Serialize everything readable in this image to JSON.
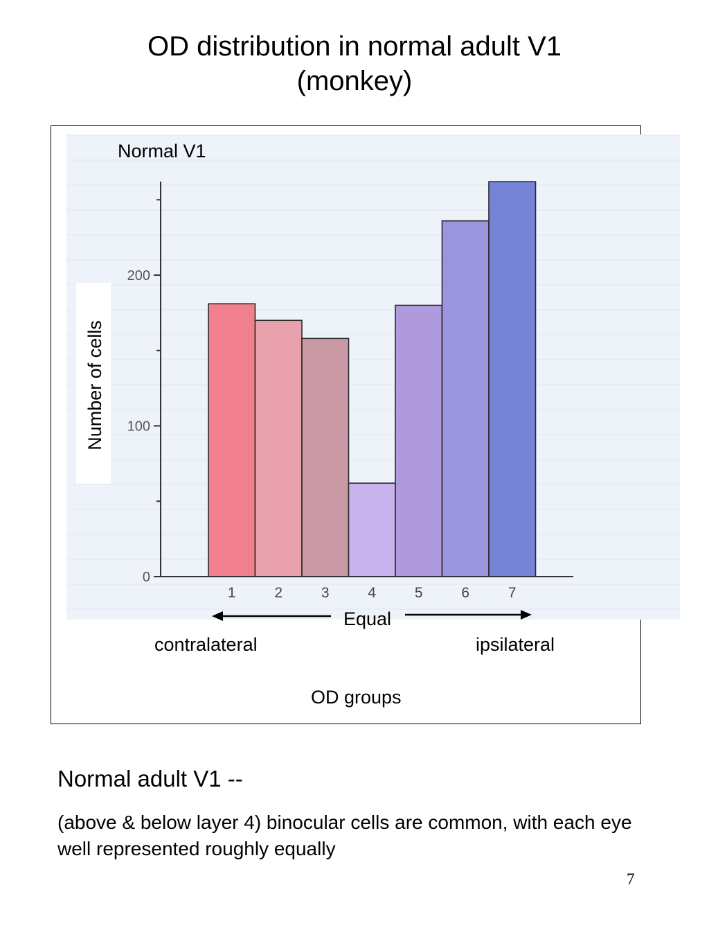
{
  "title": {
    "line1": "OD distribution in normal adult V1",
    "line2": "(monkey)"
  },
  "figure": {
    "panel_label": "Normal V1",
    "equal_label": "Equal",
    "left_label": "contralateral",
    "right_label": "ipsilateral",
    "group_axis_label": "OD groups"
  },
  "chart_data": {
    "type": "bar",
    "title": "Normal V1",
    "xlabel": "OD groups",
    "ylabel": "Number of cells",
    "categories": [
      "1",
      "2",
      "3",
      "4",
      "5",
      "6",
      "7"
    ],
    "values": [
      181,
      170,
      158,
      62,
      180,
      236,
      262
    ],
    "ylim": [
      0,
      265
    ],
    "yticks": [
      0,
      100,
      200
    ],
    "minor_yticks": [
      50,
      150,
      250
    ],
    "bar_colors": [
      "#f0808e",
      "#e9a2ad",
      "#c99aa6",
      "#c8b3ec",
      "#b09ade",
      "#9b95de",
      "#7584d6"
    ],
    "grid": false,
    "legend": "none",
    "annotations": [
      "Equal",
      "contralateral",
      "ipsilateral"
    ]
  },
  "body": {
    "heading": "Normal adult V1 --",
    "text": "(above & below layer 4) binocular cells are common, with each eye well represented roughly equally"
  },
  "page_number": "7"
}
